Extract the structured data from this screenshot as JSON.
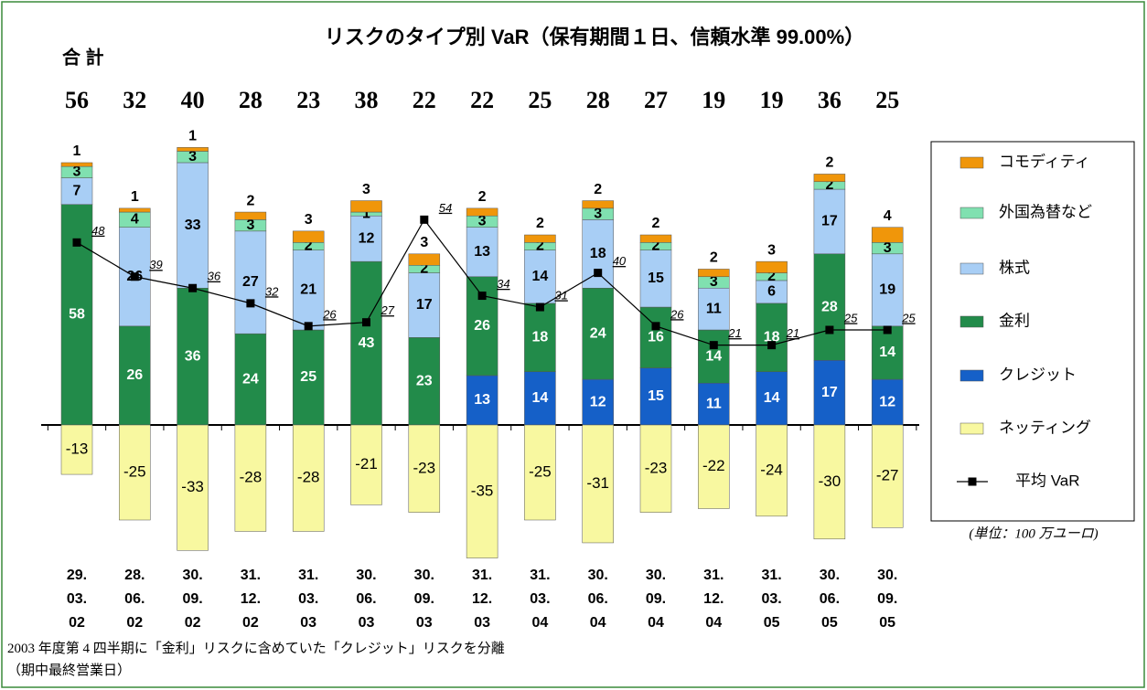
{
  "chart_data": {
    "type": "bar",
    "stacked": true,
    "title": "リスクのタイプ別 VaR（保有期間１日、信頼水準 99.00%）",
    "totals_label": "合 計",
    "totals": [
      56,
      32,
      40,
      28,
      23,
      38,
      22,
      22,
      25,
      28,
      27,
      19,
      19,
      36,
      25
    ],
    "categories": [
      "29.\n03.\n02",
      "28.\n06.\n02",
      "30.\n09.\n02",
      "31.\n12.\n02",
      "31.\n03.\n03",
      "30.\n06.\n03",
      "30.\n09.\n03",
      "31.\n12.\n03",
      "31.\n03.\n04",
      "30.\n06.\n04",
      "30.\n09.\n04",
      "31.\n12.\n04",
      "31.\n03.\n05",
      "30.\n06.\n05",
      "30.\n09.\n05"
    ],
    "series": [
      {
        "name": "コモディティ",
        "color": "#f0960a",
        "values": [
          1,
          1,
          1,
          2,
          3,
          3,
          3,
          2,
          2,
          2,
          2,
          2,
          3,
          2,
          4
        ]
      },
      {
        "name": "外国為替など",
        "color": "#80e0b0",
        "values": [
          3,
          4,
          3,
          3,
          2,
          1,
          2,
          3,
          2,
          3,
          2,
          3,
          2,
          2,
          3
        ]
      },
      {
        "name": "株式",
        "color": "#a8cef5",
        "values": [
          7,
          26,
          33,
          27,
          21,
          12,
          17,
          13,
          14,
          18,
          15,
          11,
          6,
          17,
          19
        ]
      },
      {
        "name": "金利",
        "color": "#228b4a",
        "values": [
          58,
          26,
          36,
          24,
          25,
          43,
          23,
          26,
          18,
          24,
          16,
          14,
          18,
          28,
          14
        ]
      },
      {
        "name": "クレジット",
        "color": "#1560c8",
        "values": [
          null,
          null,
          null,
          null,
          null,
          null,
          null,
          13,
          14,
          12,
          15,
          11,
          14,
          17,
          12
        ]
      },
      {
        "name": "ネッティング",
        "color": "#f8f8a0",
        "values": [
          -13,
          -25,
          -33,
          -28,
          -28,
          -21,
          -23,
          -35,
          -25,
          -31,
          -23,
          -22,
          -24,
          -30,
          -27
        ]
      },
      {
        "name": "平均 VaR",
        "type": "line",
        "color": "#000000",
        "values": [
          48,
          39,
          36,
          32,
          26,
          27,
          54,
          34,
          31,
          40,
          26,
          21,
          21,
          25,
          25
        ]
      }
    ],
    "unit": "(単位：100 万ユーロ)",
    "notes": [
      "2003 年度第 4 四半期に「金利」リスクに含めていた「クレジット」リスクを分離",
      "（期中最終営業日）"
    ]
  }
}
